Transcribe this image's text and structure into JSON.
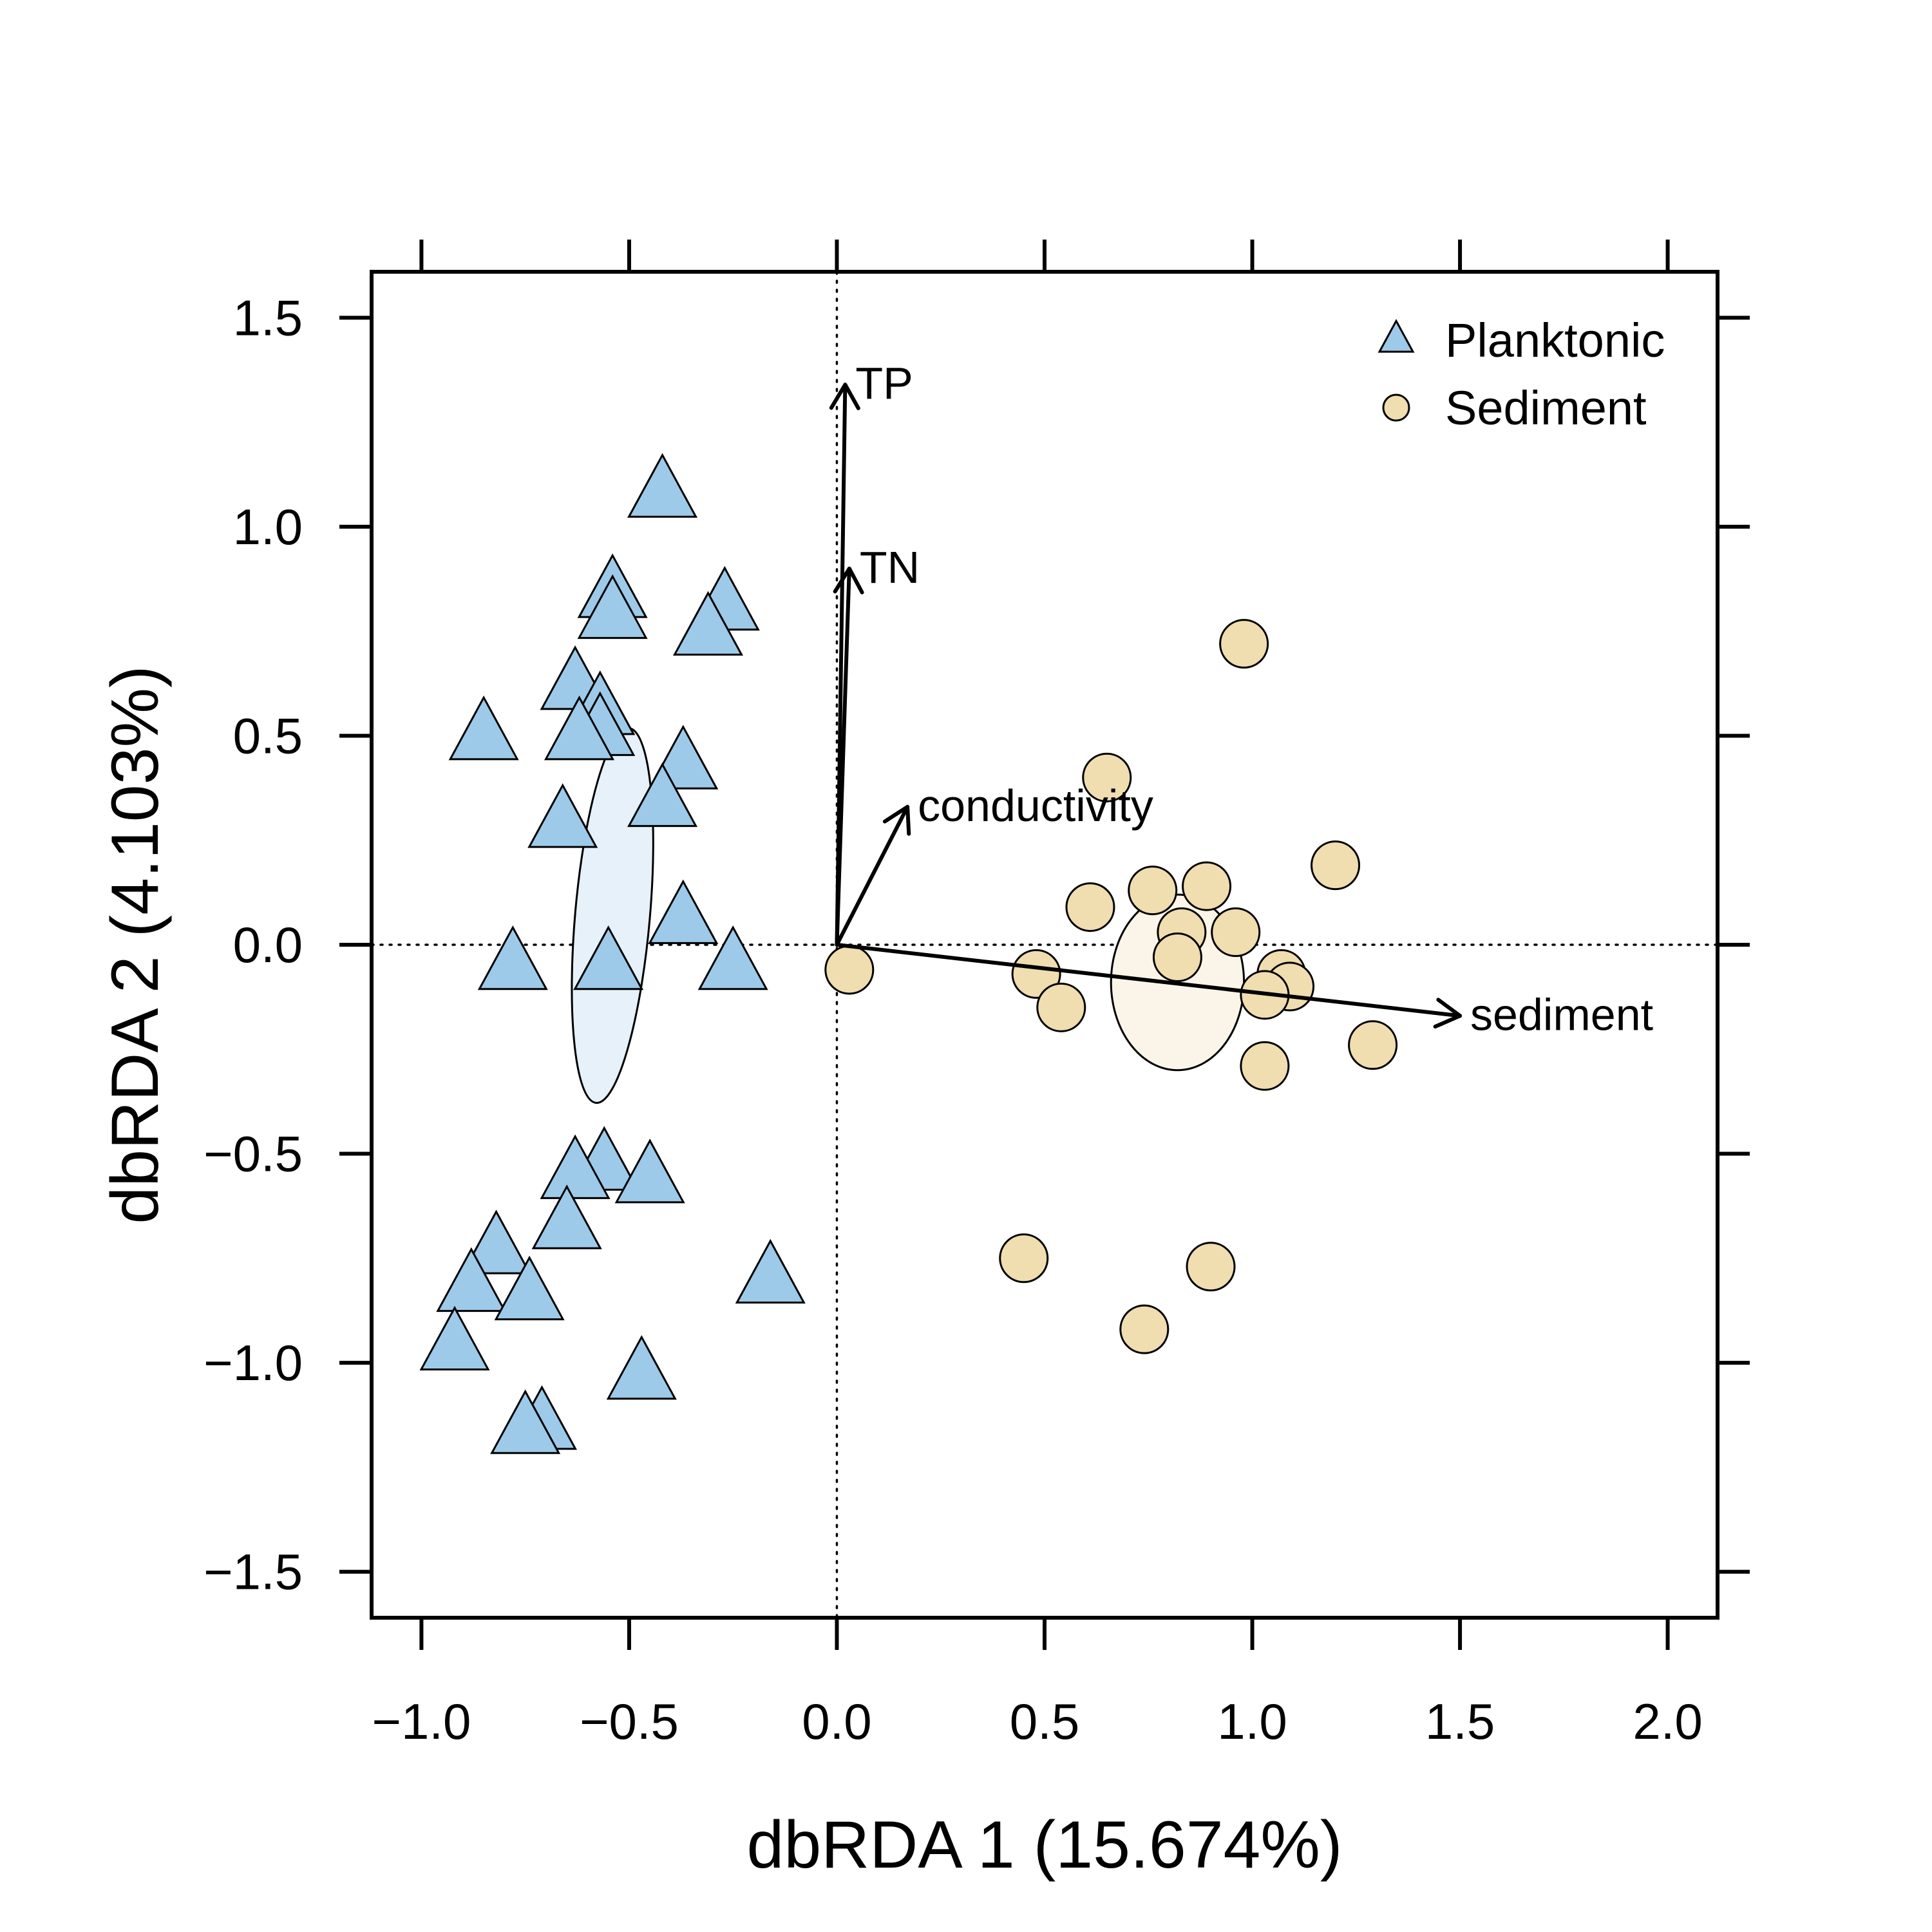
{
  "chart_data": {
    "type": "scatter",
    "title": "",
    "xlabel": "dbRDA 1 (15.674%)",
    "ylabel": "dbRDA 2 (4.103%)",
    "xlim": [
      -1.12,
      2.12
    ],
    "ylim": [
      -1.61,
      1.61
    ],
    "x_ticks": [
      -1.0,
      -0.5,
      0.0,
      0.5,
      1.0,
      1.5,
      2.0
    ],
    "x_tick_labels": [
      "−1.0",
      "−0.5",
      "0.0",
      "0.5",
      "1.0",
      "1.5",
      "2.0"
    ],
    "y_ticks": [
      -1.5,
      -1.0,
      -0.5,
      0.0,
      0.5,
      1.0,
      1.5
    ],
    "y_tick_labels": [
      "−1.5",
      "−1.0",
      "−0.5",
      "0.0",
      "0.5",
      "1.0",
      "1.5"
    ],
    "grid": false,
    "reference_lines": {
      "x": 0,
      "y": 0,
      "style": "dotted"
    },
    "legend": {
      "position": "top-right",
      "entries": [
        {
          "name": "Planktonic",
          "marker": "triangle",
          "color": "#9ecae9"
        },
        {
          "name": "Sediment",
          "marker": "circle",
          "color": "#f0ddb0"
        }
      ]
    },
    "series": [
      {
        "name": "Planktonic",
        "marker": "triangle",
        "fill": "#9ecae9",
        "points": [
          [
            -0.42,
            1.08
          ],
          [
            -0.54,
            0.84
          ],
          [
            -0.54,
            0.79
          ],
          [
            -0.27,
            0.81
          ],
          [
            -0.31,
            0.75
          ],
          [
            -0.63,
            0.62
          ],
          [
            -0.57,
            0.56
          ],
          [
            -0.57,
            0.51
          ],
          [
            -0.62,
            0.5
          ],
          [
            -0.85,
            0.5
          ],
          [
            -0.37,
            0.43
          ],
          [
            -0.42,
            0.34
          ],
          [
            -0.66,
            0.29
          ],
          [
            -0.37,
            0.06
          ],
          [
            -0.78,
            -0.05
          ],
          [
            -0.55,
            -0.05
          ],
          [
            -0.25,
            -0.05
          ],
          [
            -0.56,
            -0.53
          ],
          [
            -0.63,
            -0.55
          ],
          [
            -0.45,
            -0.56
          ],
          [
            -0.65,
            -0.67
          ],
          [
            -0.82,
            -0.73
          ],
          [
            -0.16,
            -0.8
          ],
          [
            -0.88,
            -0.82
          ],
          [
            -0.74,
            -0.84
          ],
          [
            -0.92,
            -0.96
          ],
          [
            -0.47,
            -1.03
          ],
          [
            -0.71,
            -1.15
          ],
          [
            -0.75,
            -1.16
          ]
        ]
      },
      {
        "name": "Sediment",
        "marker": "circle",
        "fill": "#f0ddb0",
        "points": [
          [
            0.98,
            0.72
          ],
          [
            0.65,
            0.4
          ],
          [
            1.2,
            0.19
          ],
          [
            0.76,
            0.13
          ],
          [
            0.89,
            0.14
          ],
          [
            0.61,
            0.09
          ],
          [
            0.83,
            0.03
          ],
          [
            0.96,
            0.03
          ],
          [
            0.82,
            -0.03
          ],
          [
            0.03,
            -0.06
          ],
          [
            0.48,
            -0.07
          ],
          [
            1.07,
            -0.07
          ],
          [
            1.09,
            -0.1
          ],
          [
            1.03,
            -0.12
          ],
          [
            0.54,
            -0.15
          ],
          [
            1.29,
            -0.24
          ],
          [
            1.03,
            -0.29
          ],
          [
            0.45,
            -0.75
          ],
          [
            0.9,
            -0.77
          ],
          [
            0.74,
            -0.92
          ]
        ]
      }
    ],
    "ellipses": [
      {
        "group": "Planktonic",
        "center": [
          -0.54,
          0.07
        ],
        "semi_axes": [
          0.09,
          0.45
        ],
        "angle_deg": 5,
        "fill": "#e6f1fa"
      },
      {
        "group": "Sediment",
        "center": [
          0.82,
          -0.09
        ],
        "semi_axes": [
          0.16,
          0.21
        ],
        "angle_deg": 0,
        "fill": "#faf5e8"
      }
    ],
    "vectors": [
      {
        "name": "TP",
        "end": [
          0.02,
          1.34
        ]
      },
      {
        "name": "TN",
        "end": [
          0.03,
          0.9
        ]
      },
      {
        "name": "conductivity",
        "end": [
          0.17,
          0.33
        ]
      },
      {
        "name": "sediment",
        "end": [
          1.5,
          -0.17
        ]
      }
    ]
  }
}
